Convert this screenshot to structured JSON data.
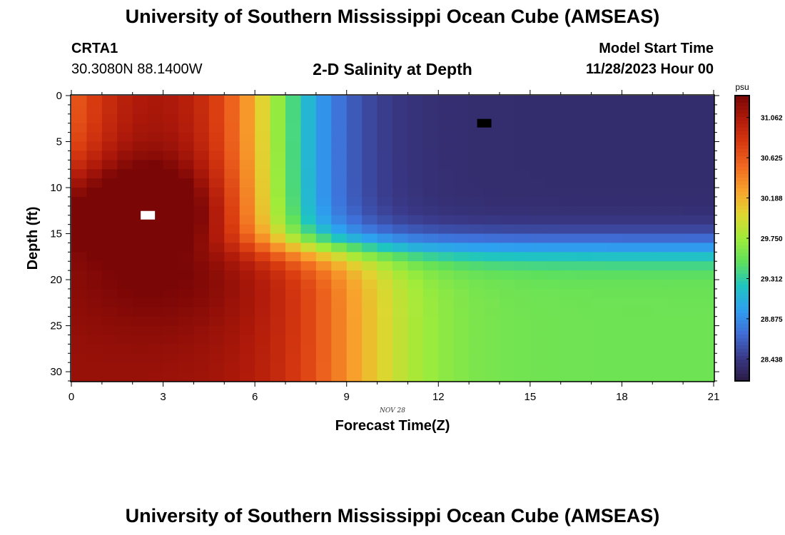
{
  "page": {
    "title_top": "University of Southern Mississippi Ocean Cube (AMSEAS)",
    "title_bottom": "University of Southern Mississippi Ocean Cube (AMSEAS)",
    "station": "CRTA1",
    "coords": "30.3080N  88.1400W",
    "subtitle": "2-D Salinity at Depth",
    "start_label": "Model Start Time",
    "start_value": "11/28/2023 Hour 00"
  },
  "chart_data": {
    "type": "heatmap",
    "title": "2-D Salinity at Depth",
    "xlabel": "Forecast Time(Z)",
    "ylabel": "Depth (ft)",
    "x_sublabel": "NOV 28",
    "xlim": [
      0,
      21
    ],
    "ylim": [
      31,
      0
    ],
    "xticks": [
      0,
      3,
      6,
      9,
      12,
      15,
      18,
      21
    ],
    "yticks": [
      0,
      5,
      10,
      15,
      20,
      25,
      30
    ],
    "colorbar": {
      "unit": "psu",
      "range": [
        28.2,
        31.3
      ],
      "ticks": [
        31.062,
        30.625,
        30.188,
        29.75,
        29.312,
        28.875,
        28.438
      ],
      "colors": [
        "#2b1a44",
        "#3a3a8a",
        "#3f6fd8",
        "#2ea0f0",
        "#1fc5c0",
        "#5fe05c",
        "#a0ec3a",
        "#e0d530",
        "#f8a22c",
        "#f06a20",
        "#d83a10",
        "#b01a0a",
        "#7a0606"
      ]
    },
    "features": {
      "max_marker": {
        "x": 2.5,
        "y": 13,
        "label": "maximum"
      },
      "min_marker": {
        "x": 13.5,
        "y": 3,
        "label": "minimum"
      }
    }
  }
}
